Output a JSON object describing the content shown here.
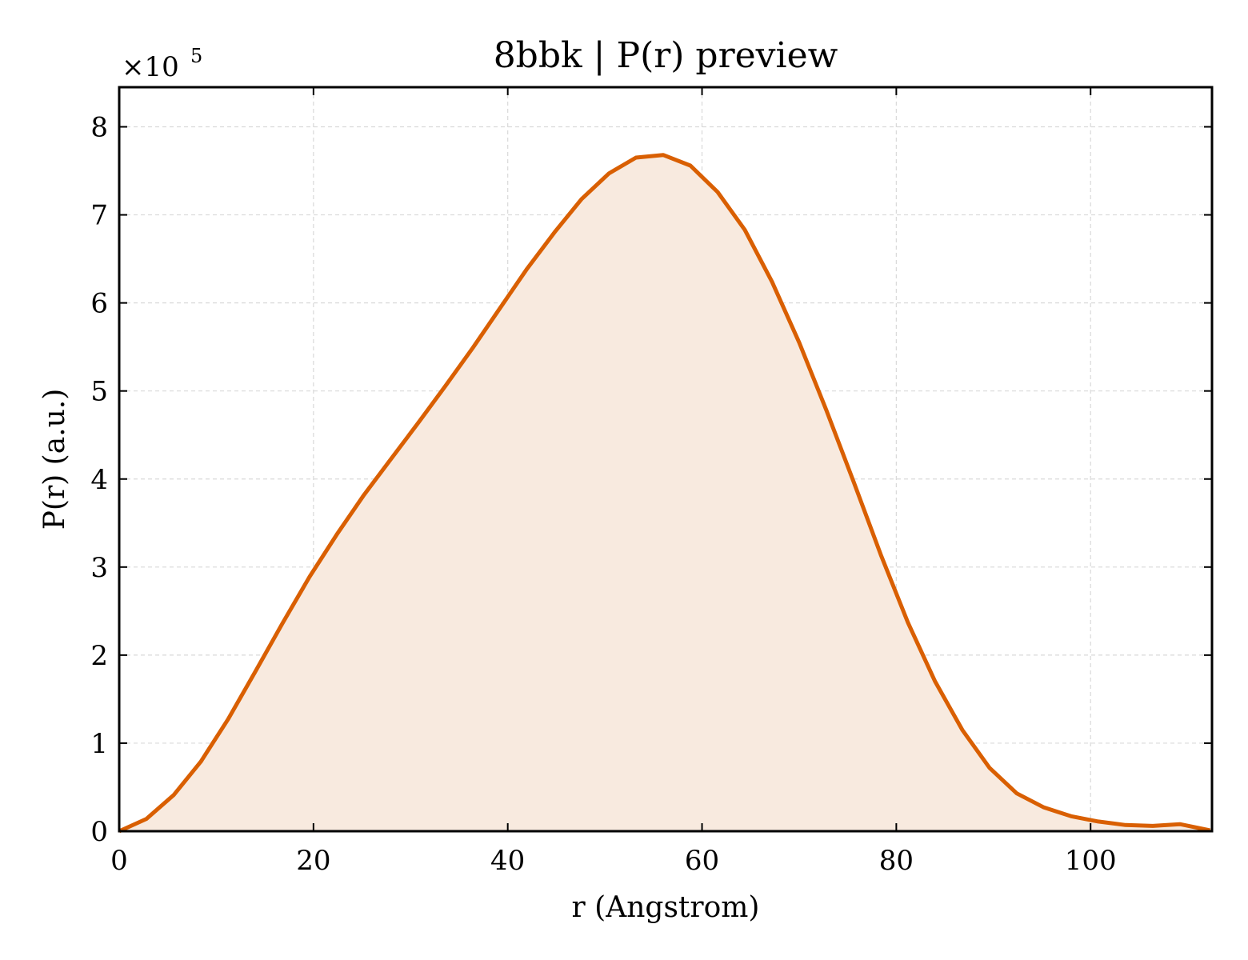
{
  "chart_data": {
    "type": "area",
    "title": "8bbk | P(r) preview",
    "xlabel": "r (Angstrom)",
    "ylabel": "P(r) (a.u.)",
    "y_multiplier_base": "×10",
    "y_multiplier_exp": "5",
    "xlim": [
      0,
      112.5
    ],
    "ylim": [
      0,
      8.45
    ],
    "x_ticks": [
      0,
      20,
      40,
      60,
      80,
      100
    ],
    "y_ticks": [
      0,
      1,
      2,
      3,
      4,
      5,
      6,
      7,
      8
    ],
    "grid": true,
    "line_color": "#d95f02",
    "fill_color": "#f8eadf",
    "series": [
      {
        "x": [
          0,
          2.8,
          5.6,
          8.4,
          11.2,
          14.0,
          16.8,
          19.6,
          22.4,
          25.2,
          28.0,
          30.8,
          33.6,
          36.4,
          39.2,
          42.0,
          44.8,
          47.6,
          50.4,
          53.2,
          56.0,
          58.8,
          61.6,
          64.4,
          67.2,
          70.0,
          72.8,
          75.6,
          78.4,
          81.2,
          84.0,
          86.8,
          89.6,
          92.4,
          95.2,
          98.0,
          100.8,
          103.6,
          106.4,
          109.2,
          112.3
        ],
        "y": [
          0,
          0.14,
          0.41,
          0.79,
          1.27,
          1.81,
          2.36,
          2.89,
          3.37,
          3.82,
          4.23,
          4.64,
          5.06,
          5.49,
          5.94,
          6.39,
          6.8,
          7.18,
          7.47,
          7.65,
          7.68,
          7.56,
          7.26,
          6.83,
          6.24,
          5.55,
          4.78,
          3.97,
          3.14,
          2.37,
          1.7,
          1.15,
          0.72,
          0.43,
          0.27,
          0.17,
          0.11,
          0.07,
          0.06,
          0.08,
          0.01
        ]
      }
    ]
  }
}
